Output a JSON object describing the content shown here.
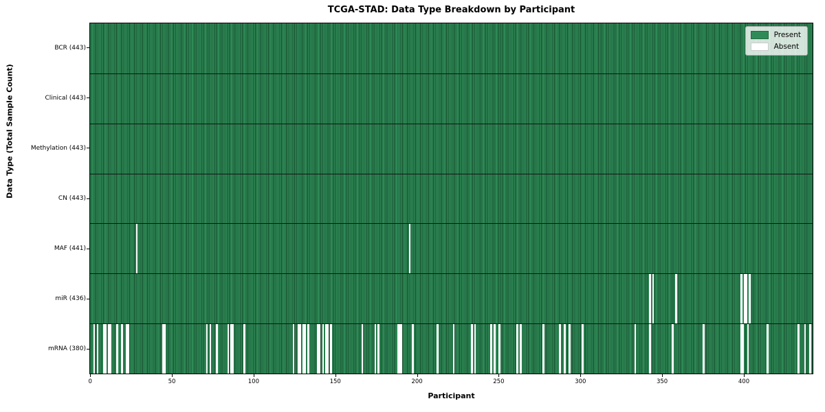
{
  "figure": {
    "title": "TCGA-STAD: Data Type Breakdown by Participant",
    "xlabel": "Participant",
    "ylabel": "Data Type (Total Sample Count)"
  },
  "legend": {
    "present_label": "Present",
    "absent_label": "Absent",
    "position": "upper right"
  },
  "colors": {
    "present": "#2e8b57",
    "present_edge": "#15492b",
    "absent": "#ffffff",
    "row_divider": "#141414",
    "axis": "#000000"
  },
  "chart_data": {
    "type": "heatmap",
    "title": "TCGA-STAD: Data Type Breakdown by Participant",
    "xlabel": "Participant",
    "ylabel": "Data Type (Total Sample Count)",
    "n_participants": 443,
    "x_range": [
      -0.5,
      442.5
    ],
    "x_ticks": [
      0,
      50,
      100,
      150,
      200,
      250,
      300,
      350,
      400
    ],
    "grid": false,
    "legend_entries": [
      "Present",
      "Absent"
    ],
    "legend_position": "upper right",
    "rows": [
      {
        "data_type": "BCR",
        "label": "BCR (443)",
        "present_count": 443,
        "absent_participants": []
      },
      {
        "data_type": "Clinical",
        "label": "Clinical (443)",
        "present_count": 443,
        "absent_participants": []
      },
      {
        "data_type": "Methylation",
        "label": "Methylation (443)",
        "present_count": 443,
        "absent_participants": []
      },
      {
        "data_type": "CN",
        "label": "CN (443)",
        "present_count": 443,
        "absent_participants": []
      },
      {
        "data_type": "MAF",
        "label": "MAF (441)",
        "present_count": 441,
        "absent_participants": [
          28,
          195
        ]
      },
      {
        "data_type": "miR",
        "label": "miR (436)",
        "present_count": 436,
        "absent_participants": [
          342,
          344,
          358,
          398,
          400,
          401,
          403
        ]
      },
      {
        "data_type": "mRNA",
        "label": "mRNA (380)",
        "present_count": 380,
        "absent_participants": [
          2,
          4,
          8,
          9,
          11,
          12,
          16,
          19,
          22,
          23,
          44,
          45,
          71,
          73,
          77,
          84,
          86,
          87,
          94,
          124,
          127,
          128,
          130,
          131,
          133,
          139,
          140,
          142,
          144,
          145,
          147,
          166,
          174,
          176,
          188,
          189,
          190,
          197,
          212,
          222,
          233,
          235,
          245,
          247,
          250,
          261,
          263,
          277,
          287,
          290,
          293,
          301,
          333,
          342,
          356,
          375,
          398,
          399,
          402,
          414,
          433,
          437,
          440
        ]
      }
    ]
  }
}
